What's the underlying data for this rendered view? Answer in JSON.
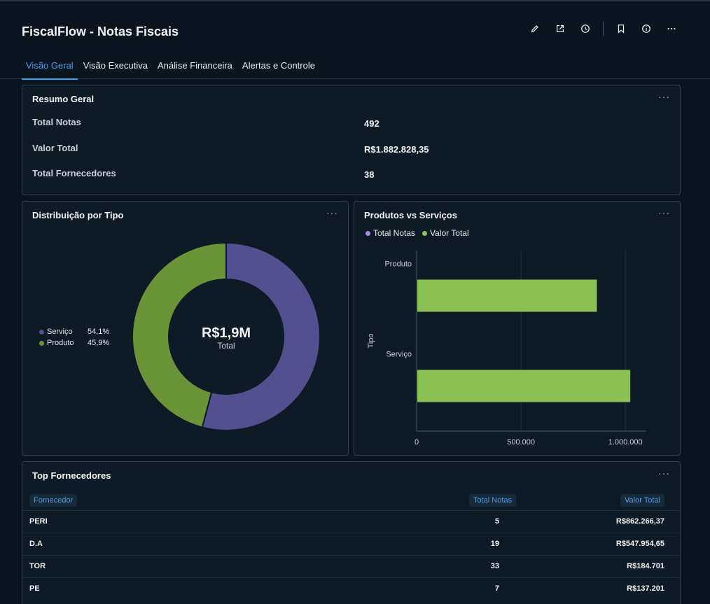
{
  "app": {
    "title": "FiscalFlow - Notas Fiscais"
  },
  "tabs": [
    {
      "label": "Visão Geral",
      "active": true
    },
    {
      "label": "Visão Executiva",
      "active": false
    },
    {
      "label": "Análise Financeira",
      "active": false
    },
    {
      "label": "Alertas e Controle",
      "active": false
    }
  ],
  "header_icons": [
    "edit-icon",
    "share-icon",
    "history-icon",
    "bookmark-icon",
    "info-icon",
    "more-icon"
  ],
  "summary": {
    "title": "Resumo Geral",
    "menu": "···",
    "rows": [
      {
        "label": "Total Notas",
        "value": "492"
      },
      {
        "label": "Valor Total",
        "value": "R$1.882.828,35"
      },
      {
        "label": "Total Fornecedores",
        "value": "38"
      }
    ]
  },
  "donut": {
    "title": "Distribuição por Tipo",
    "menu": "···",
    "center_value": "R$1,9M",
    "center_label": "Total"
  },
  "bars": {
    "title": "Produtos vs Serviços",
    "menu": "···"
  },
  "suppliers": {
    "title": "Top Fornecedores",
    "menu": "···",
    "columns": [
      "Fornecedor",
      "Total Notas",
      "Valor Total"
    ],
    "rows": [
      {
        "fornecedor": "PERI",
        "notas": "5",
        "valor": "R$862.266,37"
      },
      {
        "fornecedor": "D.A",
        "notas": "19",
        "valor": "R$547.954,65"
      },
      {
        "fornecedor": "TOR",
        "notas": "33",
        "valor": "R$184.701"
      },
      {
        "fornecedor": "PE",
        "notas": "7",
        "valor": "R$137.201"
      }
    ]
  },
  "colors": {
    "servico": "#52508f",
    "produto": "#6a9437",
    "total_notas": "#a98ce0",
    "valor_total": "#8bc152",
    "accent": "#4a9ee8"
  },
  "chart_data": [
    {
      "type": "pie",
      "title": "Distribuição por Tipo",
      "labels": [
        "Serviço",
        "Produto"
      ],
      "values": [
        54.1,
        45.9
      ],
      "value_labels": [
        "54,1%",
        "45,9%"
      ],
      "colors": [
        "#52508f",
        "#6a9437"
      ],
      "legend": "left"
    },
    {
      "type": "bar",
      "orientation": "horizontal",
      "title": "Produtos vs Serviços",
      "categories": [
        "Produto",
        "Serviço"
      ],
      "series": [
        {
          "name": "Total Notas",
          "values": [
            null,
            null
          ],
          "color": "#a98ce0"
        },
        {
          "name": "Valor Total",
          "values": [
            860000,
            1020000
          ],
          "color": "#8bc152"
        }
      ],
      "ylabel": "Tipo",
      "xlim": [
        0,
        1100000
      ],
      "xticks": [
        0,
        500000,
        1000000
      ],
      "xtick_labels": [
        "0",
        "500.000",
        "1.000.000"
      ],
      "legend": "top-left",
      "grid": true
    }
  ]
}
